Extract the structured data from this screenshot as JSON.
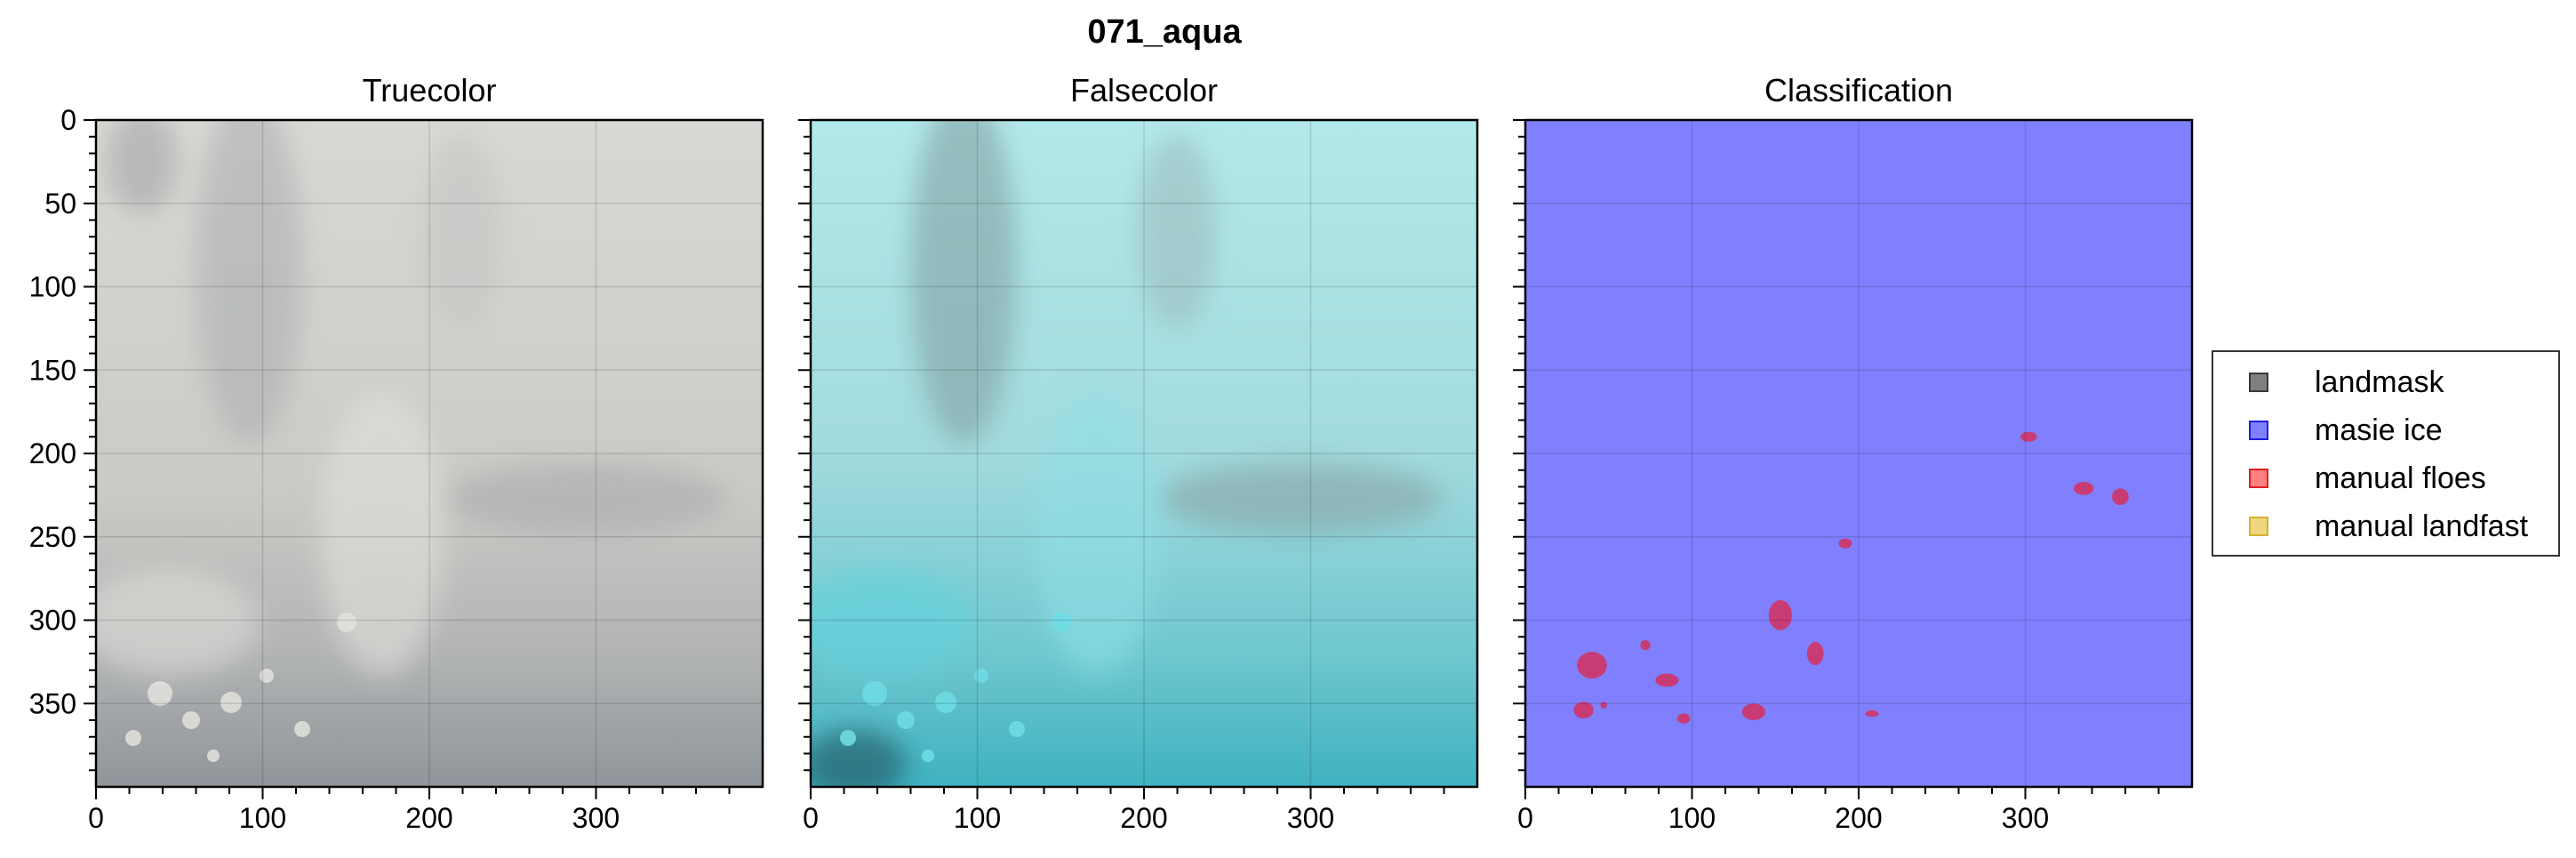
{
  "figure": {
    "title": "071_aqua"
  },
  "chart_data": [
    {
      "type": "heatmap",
      "title": "Truecolor",
      "xlabel": "",
      "ylabel": "",
      "xlim": [
        0,
        400
      ],
      "ylim": [
        400,
        0
      ],
      "x_ticks": [
        0,
        100,
        200,
        300
      ],
      "y_ticks": [
        0,
        50,
        100,
        150,
        200,
        250,
        300,
        350
      ],
      "grid": true,
      "content": "grayscale satellite imagery of sea ice and clouds"
    },
    {
      "type": "heatmap",
      "title": "Falsecolor",
      "xlabel": "",
      "ylabel": "",
      "xlim": [
        0,
        400
      ],
      "ylim": [
        400,
        0
      ],
      "x_ticks": [
        0,
        100,
        200,
        300
      ],
      "grid": true,
      "content": "cyan false-color satellite imagery of sea ice and clouds"
    },
    {
      "type": "heatmap",
      "title": "Classification",
      "xlabel": "",
      "ylabel": "",
      "xlim": [
        0,
        400
      ],
      "ylim": [
        400,
        0
      ],
      "x_ticks": [
        0,
        100,
        200,
        300
      ],
      "grid": true,
      "background_class": "masie ice",
      "floes": [
        {
          "x": 302,
          "y": 190,
          "rx": 5,
          "ry": 3
        },
        {
          "x": 335,
          "y": 221,
          "rx": 6,
          "ry": 4
        },
        {
          "x": 357,
          "y": 226,
          "rx": 5,
          "ry": 5
        },
        {
          "x": 192,
          "y": 254,
          "rx": 4,
          "ry": 3
        },
        {
          "x": 153,
          "y": 297,
          "rx": 7,
          "ry": 9
        },
        {
          "x": 174,
          "y": 320,
          "rx": 5,
          "ry": 7
        },
        {
          "x": 40,
          "y": 327,
          "rx": 9,
          "ry": 8
        },
        {
          "x": 72,
          "y": 315,
          "rx": 3,
          "ry": 3
        },
        {
          "x": 85,
          "y": 336,
          "rx": 7,
          "ry": 4
        },
        {
          "x": 35,
          "y": 354,
          "rx": 6,
          "ry": 5
        },
        {
          "x": 47,
          "y": 351,
          "rx": 2,
          "ry": 2
        },
        {
          "x": 95,
          "y": 359,
          "rx": 4,
          "ry": 3
        },
        {
          "x": 137,
          "y": 355,
          "rx": 7,
          "ry": 5
        },
        {
          "x": 208,
          "y": 356,
          "rx": 4,
          "ry": 2
        }
      ]
    }
  ],
  "legend": {
    "items": [
      {
        "label": "landmask",
        "fill": "#808080",
        "edge": "#3a3a3a"
      },
      {
        "label": "masie ice",
        "fill": "#8080ff",
        "edge": "#1f1fe0"
      },
      {
        "label": "manual floes",
        "fill": "#ff8080",
        "edge": "#e02020"
      },
      {
        "label": "manual landfast",
        "fill": "#ecd780",
        "edge": "#d6b22e"
      }
    ]
  },
  "colors": {
    "masie_ice": "#8080ff",
    "floe": "#c83c76",
    "grid": "#000000"
  }
}
